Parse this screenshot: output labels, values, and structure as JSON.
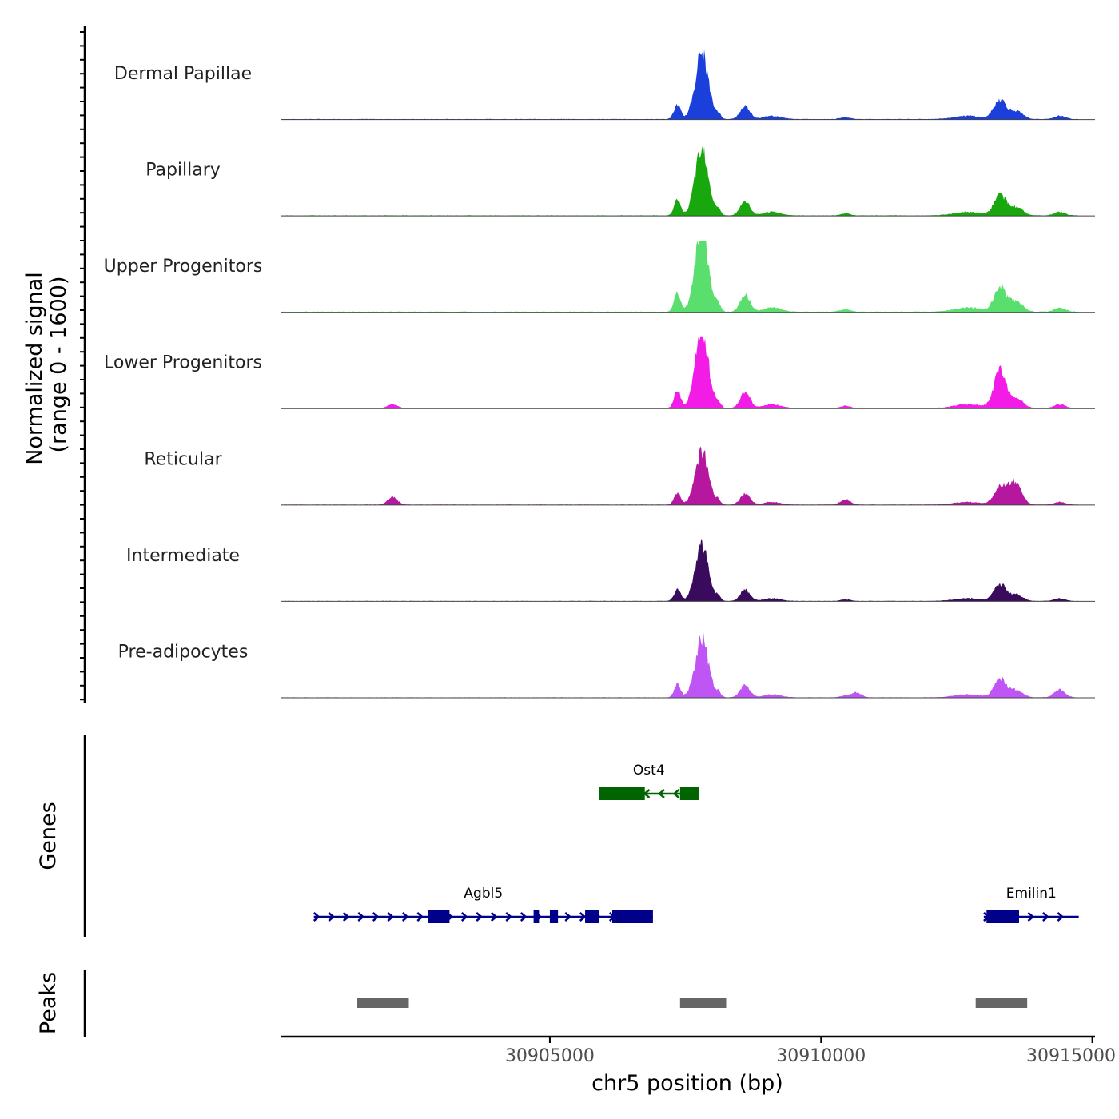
{
  "chart_data": {
    "type": "area",
    "region": {
      "chromosome": "chr5",
      "start": 30900050,
      "end": 30915050
    },
    "y_axis": {
      "label_line1": "Normalized signal",
      "label_line2": "(range 0 - 1600)",
      "ylim": [
        0,
        1600
      ]
    },
    "x_axis": {
      "label": "chr5 position (bp)",
      "ticks": [
        30905000,
        30910000,
        30915000
      ],
      "tick_labels": [
        "30905000",
        "30910000",
        "30915000"
      ]
    },
    "peak_profile": [
      {
        "pos": 30902100,
        "w": 90,
        "h": 0
      },
      {
        "pos": 30907350,
        "w": 60,
        "h": 0.22
      },
      {
        "pos": 30907800,
        "w": 120,
        "h": 1.0
      },
      {
        "pos": 30908100,
        "w": 50,
        "h": 0.08
      },
      {
        "pos": 30908600,
        "w": 90,
        "h": 0.2
      },
      {
        "pos": 30909100,
        "w": 160,
        "h": 0.05
      },
      {
        "pos": 30910450,
        "w": 90,
        "h": 0.03
      },
      {
        "pos": 30912700,
        "w": 250,
        "h": 0.05
      },
      {
        "pos": 30913300,
        "w": 110,
        "h": 0.3
      },
      {
        "pos": 30913600,
        "w": 120,
        "h": 0.12
      },
      {
        "pos": 30914400,
        "w": 100,
        "h": 0.05
      }
    ],
    "series": [
      {
        "name": "Dermal Papillae",
        "color": "#1A3FDB",
        "max": 1.0,
        "extra": []
      },
      {
        "name": "Papillary",
        "color": "#18A80E",
        "max": 1.06,
        "extra": []
      },
      {
        "name": "Upper Progenitors",
        "color": "#5ADE6E",
        "max": 1.3,
        "extra": []
      },
      {
        "name": "Lower Progenitors",
        "color": "#F21CE6",
        "max": 1.2,
        "extra": [
          {
            "pos": 30902100,
            "w": 90,
            "h": 0.05
          },
          {
            "pos": 30913300,
            "w": 110,
            "h": 0.18
          }
        ]
      },
      {
        "name": "Reticular",
        "color": "#B5179E",
        "max": 0.82,
        "extra": [
          {
            "pos": 30902100,
            "w": 90,
            "h": 0.14
          },
          {
            "pos": 30913550,
            "w": 120,
            "h": 0.3
          },
          {
            "pos": 30910450,
            "w": 90,
            "h": 0.07
          }
        ]
      },
      {
        "name": "Intermediate",
        "color": "#3A0A5C",
        "max": 0.85,
        "extra": []
      },
      {
        "name": "Pre-adipocytes",
        "color": "#BF55F5",
        "max": 0.92,
        "extra": [
          {
            "pos": 30910650,
            "w": 90,
            "h": 0.08
          },
          {
            "pos": 30914400,
            "w": 100,
            "h": 0.08
          }
        ]
      }
    ],
    "genes_track_label": "Genes",
    "genes": [
      {
        "name": "Ost4",
        "strand": "-",
        "start": 30905900,
        "end": 30907750,
        "color": "#006400",
        "row": 0,
        "exons": [
          [
            30905900,
            30906750
          ],
          [
            30907400,
            30907750
          ]
        ]
      },
      {
        "name": "Agbl5",
        "strand": "+",
        "start": 30900650,
        "end": 30906900,
        "color": "#00008B",
        "row": 1,
        "exons": [
          [
            30902750,
            30903150
          ],
          [
            30904700,
            30904800
          ],
          [
            30905000,
            30905150
          ],
          [
            30905650,
            30905900
          ],
          [
            30906150,
            30906900
          ]
        ]
      },
      {
        "name": "Emilin1",
        "strand": "+",
        "start": 30913000,
        "end": 30914750,
        "color": "#00008B",
        "row": 1,
        "exons": [
          [
            30913050,
            30913650
          ]
        ]
      }
    ],
    "peaks_track_label": "Peaks",
    "peaks": [
      {
        "start": 30901450,
        "end": 30902400
      },
      {
        "start": 30907400,
        "end": 30908250
      },
      {
        "start": 30912850,
        "end": 30913800
      }
    ],
    "peak_color": "#666666"
  }
}
